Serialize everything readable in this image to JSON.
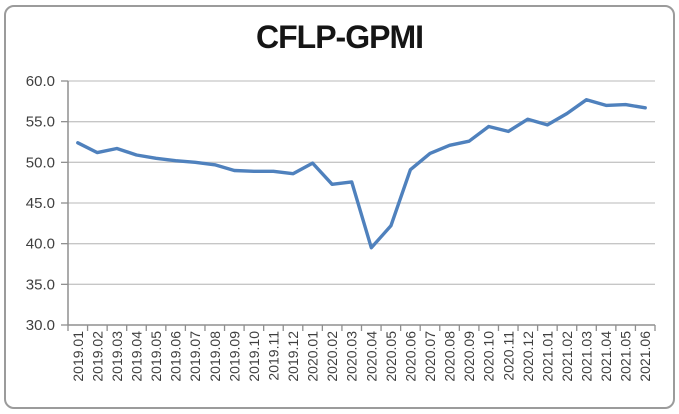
{
  "chart_data": {
    "type": "line",
    "title": "CFLP-GPMI",
    "xlabel": "",
    "ylabel": "",
    "ylim": [
      30,
      60
    ],
    "ytick_step": 5,
    "ytick_labels": [
      "60.0",
      "55.0",
      "50.0",
      "45.0",
      "40.0",
      "35.0",
      "30.0"
    ],
    "grid": true,
    "legend_position": "none",
    "categories": [
      "2019.01",
      "2019.02",
      "2019.03",
      "2019.04",
      "2019.05",
      "2019.06",
      "2019.07",
      "2019.08",
      "2019.09",
      "2019.10",
      "2019.11",
      "2019.12",
      "2020.01",
      "2020.02",
      "2020.03",
      "2020.04",
      "2020.05",
      "2020.06",
      "2020.07",
      "2020.08",
      "2020.09",
      "2020.10",
      "2020.11",
      "2020.12",
      "2021.01",
      "2021.02",
      "2021.03",
      "2021.04",
      "2021.05",
      "2021.06"
    ],
    "series": [
      {
        "name": "CFLP-GPMI",
        "values": [
          52.4,
          51.2,
          51.7,
          50.9,
          50.5,
          50.2,
          50.0,
          49.7,
          49.0,
          48.9,
          48.9,
          48.6,
          49.9,
          47.3,
          47.6,
          39.5,
          42.2,
          49.1,
          51.1,
          52.1,
          52.6,
          54.4,
          53.8,
          55.3,
          54.6,
          56.0,
          57.7,
          57.0,
          57.1,
          56.7
        ]
      }
    ],
    "colors": {
      "line": "#4f81bd",
      "gridline": "#c6c6c6",
      "axis": "#8f8f8f",
      "tick_label": "#3f3f3f",
      "title": "#151515",
      "frame_border": "#9b9b9b",
      "background": "#ffffff"
    }
  }
}
